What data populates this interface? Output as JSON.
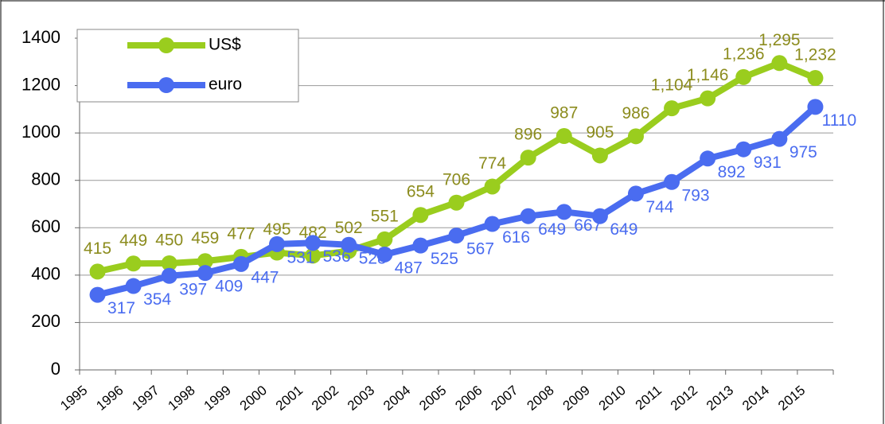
{
  "chart_data": {
    "type": "line",
    "categories": [
      "1995",
      "1996",
      "1997",
      "1998",
      "1999",
      "2000",
      "2001",
      "2002",
      "2003",
      "2004",
      "2005",
      "2006",
      "2007",
      "2008",
      "2009",
      "2010",
      "2011",
      "2012",
      "2013",
      "2014",
      "2015"
    ],
    "series": [
      {
        "name": "US$",
        "color": "#9acd1e",
        "label_color": "#8c8c1e",
        "values": [
          415,
          449,
          450,
          459,
          477,
          495,
          482,
          502,
          551,
          654,
          706,
          774,
          896,
          987,
          905,
          986,
          1104,
          1146,
          1236,
          1295,
          1232
        ],
        "value_labels": [
          "415",
          "449",
          "450",
          "459",
          "477",
          "495",
          "482",
          "502",
          "551",
          "654",
          "706",
          "774",
          "896",
          "987",
          "905",
          "986",
          "1,104",
          "1,146",
          "1,236",
          "1,295",
          "1,232"
        ]
      },
      {
        "name": "euro",
        "color": "#4a6cf0",
        "label_color": "#4a6cf0",
        "values": [
          317,
          354,
          397,
          409,
          447,
          531,
          536,
          528,
          487,
          525,
          567,
          616,
          649,
          667,
          649,
          744,
          793,
          892,
          931,
          975,
          1110
        ]
      }
    ],
    "ylim": [
      0,
      1400
    ],
    "yticks": [
      0,
      200,
      400,
      600,
      800,
      1000,
      1200,
      1400
    ],
    "grid": true
  }
}
